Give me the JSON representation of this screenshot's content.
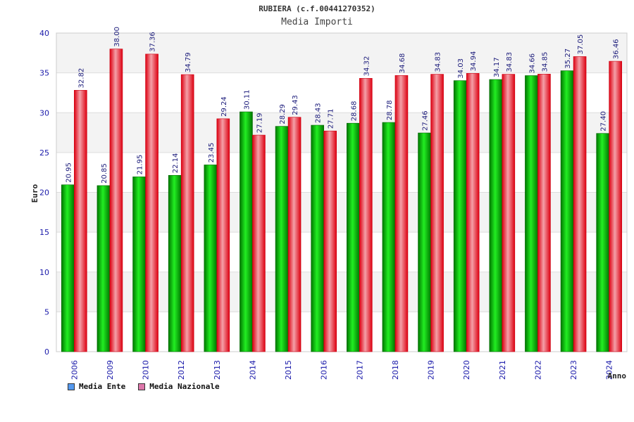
{
  "chart_data": {
    "type": "bar",
    "title": "RUBIERA (c.f.00441270352)",
    "subtitle": "Media Importi",
    "xlabel": "Anno",
    "ylabel": "Euro",
    "ylim": [
      0,
      40
    ],
    "yticks": [
      "0",
      "5",
      "10",
      "15",
      "20",
      "25",
      "30",
      "35",
      "40"
    ],
    "categories": [
      "2006",
      "2009",
      "2010",
      "2012",
      "2013",
      "2014",
      "2015",
      "2016",
      "2017",
      "2018",
      "2019",
      "2020",
      "2021",
      "2022",
      "2023",
      "2024"
    ],
    "series": [
      {
        "name": "Media Ente",
        "color": "#00aa00",
        "legend_color": "#5599ee",
        "values": [
          20.95,
          20.85,
          21.95,
          22.14,
          23.45,
          30.11,
          28.29,
          28.43,
          28.68,
          28.78,
          27.46,
          34.03,
          34.17,
          34.66,
          35.27,
          27.4
        ],
        "labels": [
          "20.95",
          "20.85",
          "21.95",
          "22.14",
          "23.45",
          "30.11",
          "28.29",
          "28.43",
          "28.68",
          "28.78",
          "27.46",
          "34.03",
          "34.17",
          "34.66",
          "35.27",
          "27.40"
        ]
      },
      {
        "name": "Media Nazionale",
        "color": "#ee2233",
        "legend_color": "#dd77aa",
        "values": [
          32.82,
          38.0,
          37.36,
          34.79,
          29.24,
          27.19,
          29.43,
          27.71,
          34.32,
          34.68,
          34.83,
          34.94,
          34.83,
          34.85,
          37.05,
          36.46
        ],
        "labels": [
          "32.82",
          "38.00",
          "37.36",
          "34.79",
          "29.24",
          "27.19",
          "29.43",
          "27.71",
          "34.32",
          "34.68",
          "34.83",
          "34.94",
          "34.83",
          "34.85",
          "37.05",
          "36.46"
        ]
      }
    ]
  }
}
